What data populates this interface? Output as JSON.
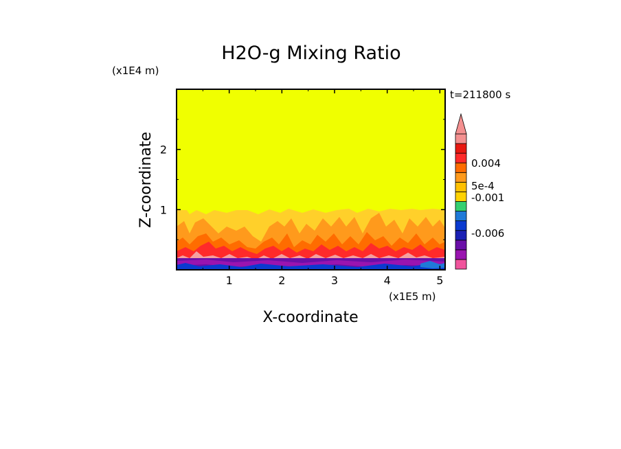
{
  "chart_data": {
    "type": "heatmap",
    "title": "H2O-g Mixing Ratio",
    "xlabel": "X-coordinate",
    "ylabel": "Z-coordinate",
    "x_unit_label": "(x1E5 m)",
    "y_unit_label": "(x1E4 m)",
    "time_label": "t=211800 s",
    "xlim": [
      0,
      5.1
    ],
    "ylim": [
      0,
      3
    ],
    "x_ticks": [
      "1",
      "2",
      "3",
      "4",
      "5"
    ],
    "y_ticks": [
      "1",
      "2"
    ],
    "colorbar": {
      "labels": [
        "0.004",
        "5e-4",
        "-0.001",
        "-0.006"
      ],
      "colors": [
        "#f0549c",
        "#9a14b0",
        "#6a0fa8",
        "#1a20b4",
        "#0a3ad0",
        "#1f7ad8",
        "#35d070",
        "#ffd200",
        "#ffc000",
        "#ff9a1c",
        "#ff6c00",
        "#ff2a2a",
        "#e81810",
        "#f49090"
      ]
    },
    "background_color": "#f0ff00"
  }
}
